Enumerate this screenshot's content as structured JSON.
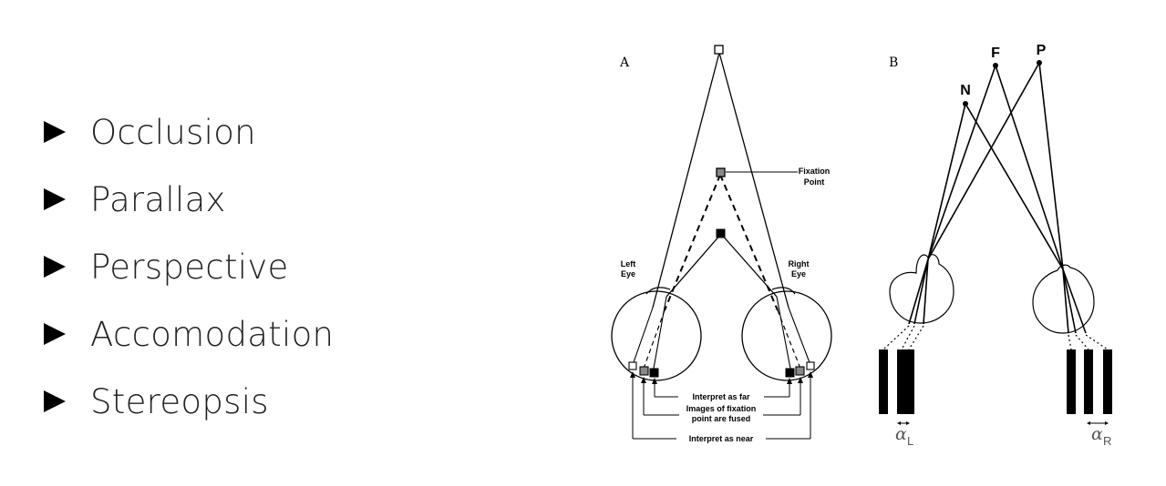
{
  "bullets": [
    {
      "label": "Occlusion"
    },
    {
      "label": "Parallax"
    },
    {
      "label": "Perspective"
    },
    {
      "label": "Accomodation"
    },
    {
      "label": "Stereopsis"
    }
  ],
  "figure_a": {
    "panel_label": "A",
    "fixation_label_1": "Fixation",
    "fixation_label_2": "Point",
    "left_eye_1": "Left",
    "left_eye_2": "Eye",
    "right_eye_1": "Right",
    "right_eye_2": "Eye",
    "far_label": "Interpret as far",
    "fused_label_1": "Images of fixation",
    "fused_label_2": "point are fused",
    "near_label": "Interpret as near"
  },
  "figure_b": {
    "panel_label": "B",
    "point_n": "N",
    "point_f": "F",
    "point_p": "P",
    "alpha_left": "α",
    "alpha_left_sub": "L",
    "alpha_right": "α",
    "alpha_right_sub": "R"
  }
}
